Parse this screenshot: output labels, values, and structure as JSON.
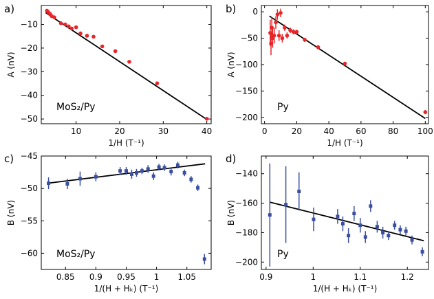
{
  "colors": {
    "red": "#e8262a",
    "blue": "#3a4fa0",
    "fit": "#000000"
  },
  "chart_data": [
    {
      "panel_label": "a)",
      "type": "scatter",
      "annotation": "MoS₂/Py",
      "xlabel": "1/H (T⁻¹)",
      "ylabel": "A (nV)",
      "xlim": [
        2,
        41
      ],
      "ylim": [
        -52,
        -2
      ],
      "xticks": [
        10,
        20,
        30,
        40
      ],
      "yticks": [
        -10,
        -20,
        -30,
        -40,
        -50
      ],
      "grid": false,
      "series": [
        {
          "color": "#e8262a",
          "marker": "circle",
          "points": [
            {
              "x": 3.3,
              "y": -4.2,
              "err": 0.8
            },
            {
              "x": 3.6,
              "y": -4.8,
              "err": 0.8
            },
            {
              "x": 4.0,
              "y": -5.5,
              "err": 0.6
            },
            {
              "x": 4.4,
              "y": -6.5,
              "err": 0.6
            },
            {
              "x": 5.0,
              "y": -7.0,
              "err": 0.5
            },
            {
              "x": 6.5,
              "y": -9.5,
              "err": 0.5
            },
            {
              "x": 7.5,
              "y": -10.0,
              "err": 0.5
            },
            {
              "x": 8.3,
              "y": -10.8,
              "err": 0.5
            },
            {
              "x": 9.0,
              "y": -11.7,
              "err": 0.5
            },
            {
              "x": 10.0,
              "y": -11.2,
              "err": 0.5
            },
            {
              "x": 11.0,
              "y": -13.8,
              "err": 0.5
            },
            {
              "x": 12.5,
              "y": -14.8,
              "err": 0.5
            },
            {
              "x": 14.0,
              "y": -15.2,
              "err": 0.5
            },
            {
              "x": 16.0,
              "y": -19.3,
              "err": 0.5
            },
            {
              "x": 19.0,
              "y": -21.3,
              "err": 0.5
            },
            {
              "x": 22.2,
              "y": -25.8,
              "err": 0.6
            },
            {
              "x": 28.6,
              "y": -34.9,
              "err": 0.6
            },
            {
              "x": 40.0,
              "y": -49.9,
              "err": 0.6
            }
          ]
        }
      ],
      "fit": {
        "x": [
          3,
          40
        ],
        "y": [
          -5.0,
          -50.2
        ]
      }
    },
    {
      "panel_label": "b)",
      "type": "scatter",
      "annotation": "Py",
      "xlabel": "1/H (T⁻¹)",
      "ylabel": "A (nV)",
      "xlim": [
        -2,
        102
      ],
      "ylim": [
        -212,
        12
      ],
      "xticks": [
        0,
        20,
        40,
        60,
        80,
        100
      ],
      "yticks": [
        0,
        -50,
        -100,
        -150,
        -200
      ],
      "grid": false,
      "series": [
        {
          "color": "#e8262a",
          "marker": "circle",
          "points": [
            {
              "x": 3.5,
              "y": -40,
              "err": 25
            },
            {
              "x": 4.0,
              "y": -60,
              "err": 22
            },
            {
              "x": 4.5,
              "y": -30,
              "err": 20
            },
            {
              "x": 5.0,
              "y": -50,
              "err": 18
            },
            {
              "x": 6.0,
              "y": -45,
              "err": 15
            },
            {
              "x": 7.0,
              "y": -20,
              "err": 12
            },
            {
              "x": 8.0,
              "y": -5,
              "err": 10
            },
            {
              "x": 9.0,
              "y": -45,
              "err": 10
            },
            {
              "x": 10.0,
              "y": -2,
              "err": 8
            },
            {
              "x": 11.0,
              "y": -50,
              "err": 8
            },
            {
              "x": 12.5,
              "y": -30,
              "err": 6
            },
            {
              "x": 14.0,
              "y": -45,
              "err": 6
            },
            {
              "x": 16.0,
              "y": -35,
              "err": 5
            },
            {
              "x": 18.0,
              "y": -38,
              "err": 5
            },
            {
              "x": 20.0,
              "y": -38,
              "err": 4
            },
            {
              "x": 25.0,
              "y": -53,
              "err": 4
            },
            {
              "x": 33.3,
              "y": -67,
              "err": 4
            },
            {
              "x": 50.0,
              "y": -98,
              "err": 3
            },
            {
              "x": 100.0,
              "y": -190,
              "err": 4
            }
          ]
        }
      ],
      "fit": {
        "x": [
          3,
          100
        ],
        "y": [
          -8,
          -202
        ]
      }
    },
    {
      "panel_label": "c)",
      "type": "scatter",
      "annotation": "MoS₂/Py",
      "xlabel": "1/(H + Hₖ) (T⁻¹)",
      "ylabel": "B (nV)",
      "xlim": [
        0.81,
        1.09
      ],
      "ylim": [
        -62.5,
        -45
      ],
      "xticks": [
        0.85,
        0.9,
        0.95,
        1.0,
        1.05
      ],
      "yticks": [
        -45,
        -50,
        -55,
        -60
      ],
      "grid": false,
      "series": [
        {
          "color": "#3a4fa0",
          "marker": "square",
          "points": [
            {
              "x": 0.822,
              "y": -49.2,
              "err": 0.9
            },
            {
              "x": 0.853,
              "y": -49.3,
              "err": 0.8
            },
            {
              "x": 0.874,
              "y": -48.5,
              "err": 1.1
            },
            {
              "x": 0.9,
              "y": -48.2,
              "err": 0.7
            },
            {
              "x": 0.94,
              "y": -47.3,
              "err": 0.6
            },
            {
              "x": 0.95,
              "y": -47.3,
              "err": 0.6
            },
            {
              "x": 0.959,
              "y": -47.8,
              "err": 0.7
            },
            {
              "x": 0.967,
              "y": -47.6,
              "err": 0.6
            },
            {
              "x": 0.976,
              "y": -47.3,
              "err": 0.5
            },
            {
              "x": 0.986,
              "y": -47.0,
              "err": 0.6
            },
            {
              "x": 0.995,
              "y": -48.1,
              "err": 0.6
            },
            {
              "x": 1.004,
              "y": -46.7,
              "err": 0.5
            },
            {
              "x": 1.013,
              "y": -46.8,
              "err": 0.5
            },
            {
              "x": 1.024,
              "y": -47.4,
              "err": 0.6
            },
            {
              "x": 1.035,
              "y": -46.4,
              "err": 0.5
            },
            {
              "x": 1.046,
              "y": -47.6,
              "err": 0.5
            },
            {
              "x": 1.057,
              "y": -48.6,
              "err": 0.5
            },
            {
              "x": 1.068,
              "y": -49.9,
              "err": 0.5
            },
            {
              "x": 1.079,
              "y": -60.9,
              "err": 0.8
            }
          ]
        }
      ],
      "fit": {
        "x": [
          0.82,
          1.08
        ],
        "y": [
          -49.2,
          -46.2
        ]
      }
    },
    {
      "panel_label": "d)",
      "type": "scatter",
      "annotation": "Py",
      "xlabel": "1/(H + Hₖ) (T⁻¹)",
      "ylabel": "B (nV)",
      "xlim": [
        0.89,
        1.245
      ],
      "ylim": [
        -205,
        -128
      ],
      "xticks": [
        0.9,
        1.0,
        1.1,
        1.2
      ],
      "yticks": [
        -140,
        -160,
        -180,
        -200
      ],
      "grid": false,
      "series": [
        {
          "color": "#3a4fa0",
          "marker": "square",
          "points": [
            {
              "x": 0.908,
              "y": -168,
              "err": 35
            },
            {
              "x": 0.942,
              "y": -161,
              "err": 26
            },
            {
              "x": 0.97,
              "y": -152,
              "err": 13
            },
            {
              "x": 1.001,
              "y": -171,
              "err": 8
            },
            {
              "x": 1.052,
              "y": -169,
              "err": 5
            },
            {
              "x": 1.063,
              "y": -174,
              "err": 5
            },
            {
              "x": 1.075,
              "y": -182,
              "err": 5
            },
            {
              "x": 1.087,
              "y": -167,
              "err": 5
            },
            {
              "x": 1.1,
              "y": -175,
              "err": 5
            },
            {
              "x": 1.111,
              "y": -183,
              "err": 4
            },
            {
              "x": 1.122,
              "y": -162,
              "err": 4
            },
            {
              "x": 1.136,
              "y": -176,
              "err": 4
            },
            {
              "x": 1.148,
              "y": -180,
              "err": 4
            },
            {
              "x": 1.16,
              "y": -182,
              "err": 3
            },
            {
              "x": 1.173,
              "y": -175,
              "err": 3
            },
            {
              "x": 1.185,
              "y": -178,
              "err": 3
            },
            {
              "x": 1.197,
              "y": -179,
              "err": 3
            },
            {
              "x": 1.21,
              "y": -185,
              "err": 3
            },
            {
              "x": 1.232,
              "y": -193,
              "err": 3
            }
          ]
        }
      ],
      "fit": {
        "x": [
          0.908,
          1.235
        ],
        "y": [
          -159.3,
          -185.5
        ]
      }
    }
  ]
}
